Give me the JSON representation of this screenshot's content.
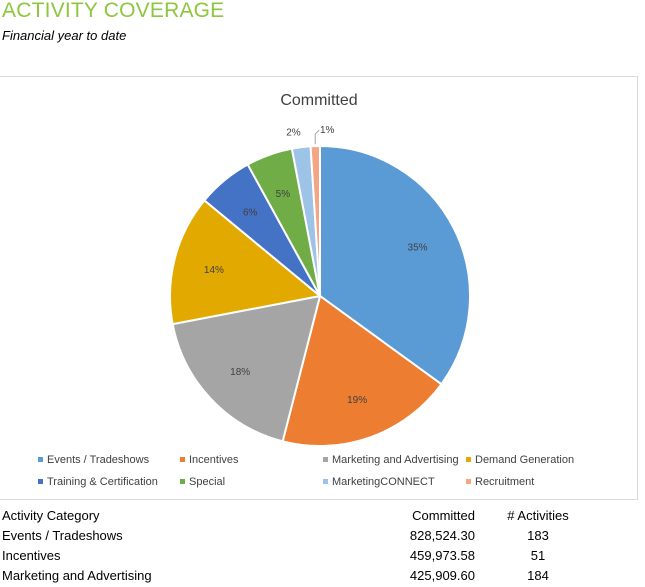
{
  "page": {
    "title": "ACTIVITY COVERAGE",
    "subtitle": "Financial year to date"
  },
  "chart_data": {
    "type": "pie",
    "title": "Committed",
    "legend_position": "bottom",
    "categories": [
      "Events / Tradeshows",
      "Incentives",
      "Marketing and Advertising",
      "Demand Generation",
      "Training & Certification",
      "Special",
      "MarketingCONNECT",
      "Recruitment"
    ],
    "values": [
      35,
      19,
      18,
      14,
      6,
      5,
      2,
      1
    ],
    "labels": [
      "35%",
      "19%",
      "18%",
      "14%",
      "6%",
      "5%",
      "2%",
      "1%"
    ],
    "colors": [
      "#5b9bd5",
      "#ed7d31",
      "#a5a5a5",
      "#e2aa00",
      "#4472c4",
      "#70ad47",
      "#9dc3e6",
      "#f4a582"
    ]
  },
  "table": {
    "headers": [
      "Activity Category",
      "Committed",
      "# Activities"
    ],
    "rows": [
      [
        "Events / Tradeshows",
        "828,524.30",
        "183"
      ],
      [
        "Incentives",
        "459,973.58",
        "51"
      ],
      [
        "Marketing and Advertising",
        "425,909.60",
        "184"
      ]
    ]
  }
}
